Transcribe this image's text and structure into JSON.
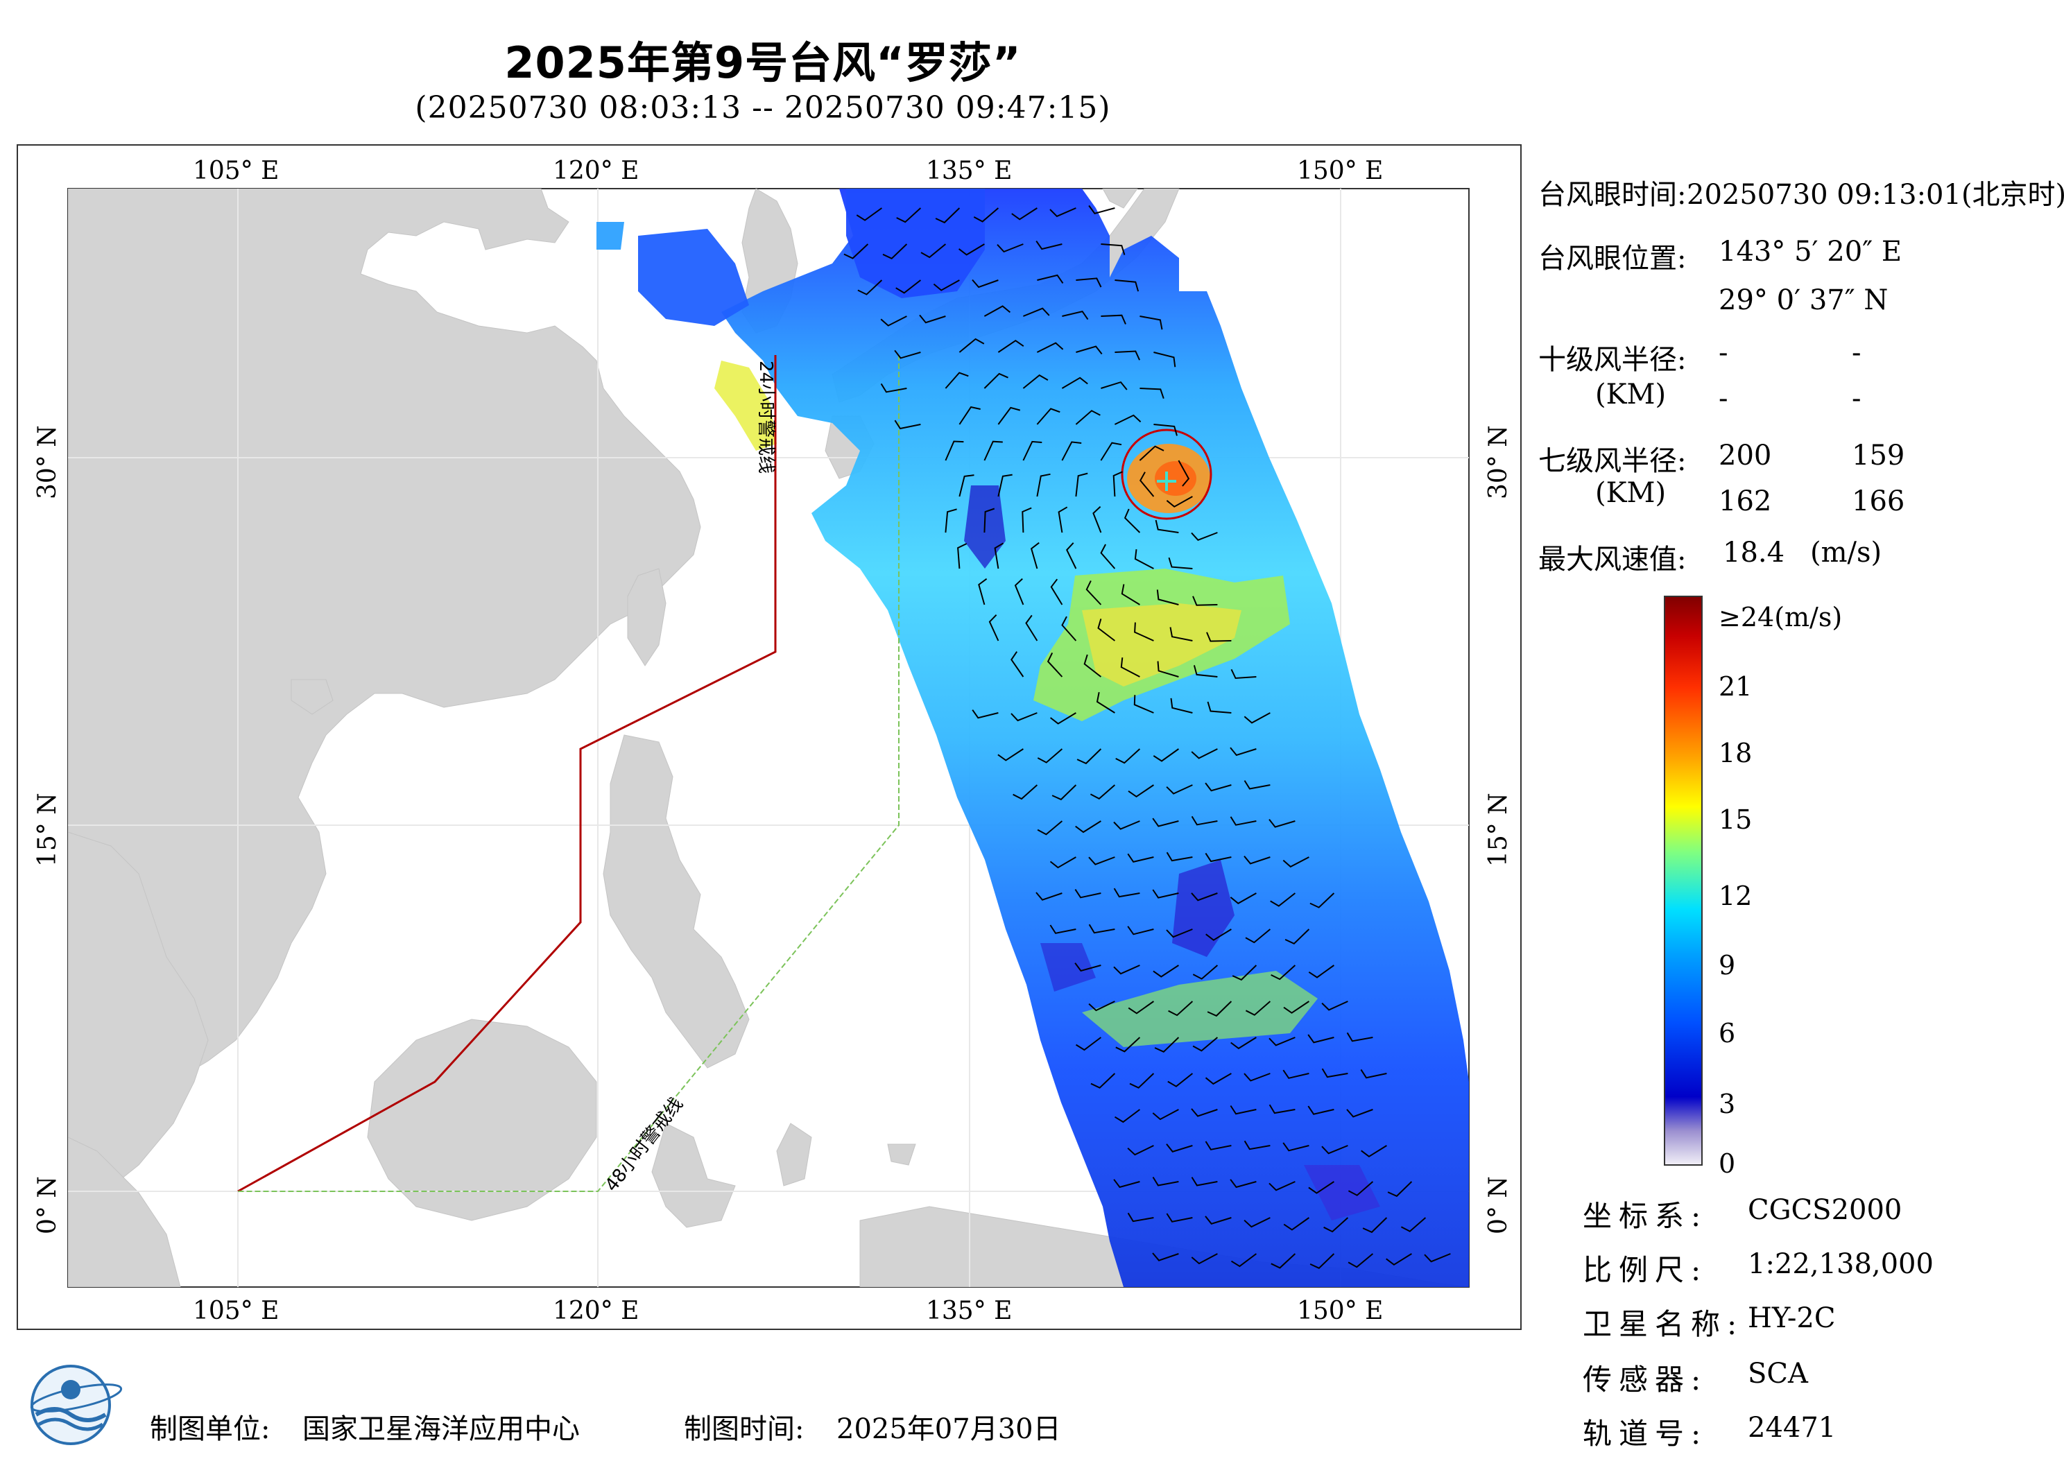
{
  "header": {
    "title": "2025年第9号台风“罗莎”",
    "subtitle": "(20250730 08:03:13 -- 20250730 09:47:15)"
  },
  "map": {
    "lon_labels": [
      "105° E",
      "120° E",
      "135° E",
      "150° E"
    ],
    "lat_labels": [
      "30° N",
      "15° N",
      "0° N"
    ],
    "warning_line_24h": "24小时警戒线",
    "warning_line_48h": "48小时警戒线",
    "colors": {
      "land": "#d3d3d3",
      "sea": "#ffffff",
      "line24": "#b00000",
      "line48": "#7cc35a"
    }
  },
  "info": {
    "eye_time_label": "台风眼时间:",
    "eye_time_value": "20250730 09:13:01(北京时)",
    "eye_pos_label": "台风眼位置:",
    "eye_lon": "143° 5′ 20″ E",
    "eye_lat": "29° 0′ 37″ N",
    "r10_label": "十级风半径:",
    "km1": "(KM)",
    "r10_values": [
      "-",
      "-",
      "-",
      "-"
    ],
    "r7_label": "七级风半径:",
    "km2": "(KM)",
    "r7_values": [
      "200",
      "159",
      "162",
      "166"
    ],
    "max_wind_label": "最大风速值:",
    "max_wind_value": "18.4",
    "max_wind_unit": "(m/s)"
  },
  "colorbar": {
    "labels": [
      "≥24(m/s)",
      "21",
      "18",
      "15",
      "12",
      "9",
      "6",
      "3",
      "0"
    ],
    "colors": [
      "#f2f0f7",
      "#9b8fd0",
      "#0000c8",
      "#0050ff",
      "#00a0ff",
      "#00e0ff",
      "#80ff80",
      "#ffff00",
      "#ffa000",
      "#ff3000",
      "#c80000",
      "#800000"
    ]
  },
  "meta": {
    "crs_label": "坐标系:",
    "crs_value": "CGCS2000",
    "scale_label": "比例尺:",
    "scale_value": "1:22,138,000",
    "satellite_label": "卫星名称:",
    "satellite_value": "HY-2C",
    "sensor_label": "传感器:",
    "sensor_value": "SCA",
    "orbit_label": "轨道号:",
    "orbit_value": "24471"
  },
  "footer": {
    "unit_label": "制图单位:",
    "unit_value": "国家卫星海洋应用中心",
    "time_label": "制图时间:",
    "time_value": "2025年07月30日"
  }
}
